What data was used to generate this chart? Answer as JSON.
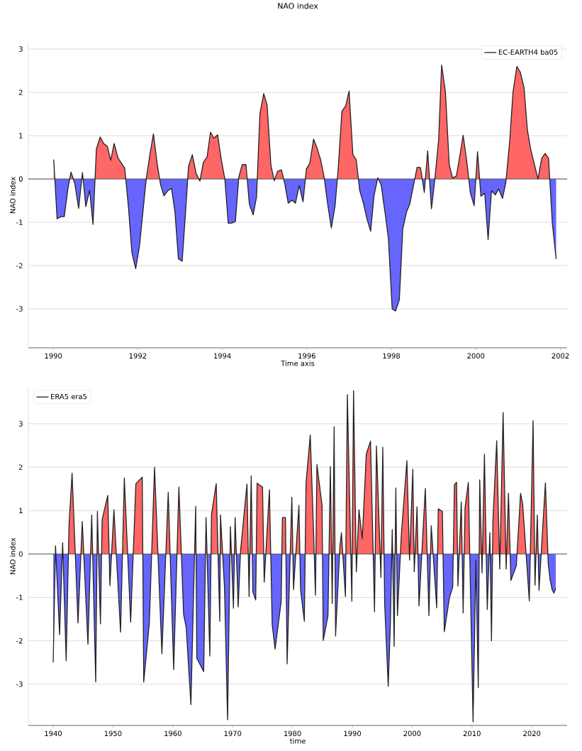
{
  "chart_data": [
    {
      "type": "area",
      "title": "NAO index",
      "xlabel": "Time axis",
      "ylabel": "NAO index",
      "xlim": [
        1989.41,
        2002.16
      ],
      "ylim": [
        -3.9,
        3.15
      ],
      "xticks": [
        1990,
        1992,
        1994,
        1996,
        1998,
        2000,
        2002
      ],
      "yticks": [
        -3,
        -2,
        -1,
        0,
        1,
        2,
        3
      ],
      "grid": "y",
      "legend": "top right",
      "ref_lines": [
        {
          "axis": "y",
          "value": 0,
          "color": "#555555"
        }
      ],
      "x": [
        1990.01,
        1990.09,
        1990.18,
        1990.26,
        1990.35,
        1990.42,
        1990.51,
        1990.6,
        1990.69,
        1990.77,
        1990.86,
        1990.94,
        1991.02,
        1991.11,
        1991.19,
        1991.28,
        1991.36,
        1991.44,
        1991.53,
        1991.61,
        1991.69,
        1991.78,
        1991.86,
        1991.95,
        1992.04,
        1992.12,
        1992.2,
        1992.29,
        1992.37,
        1992.46,
        1992.54,
        1992.62,
        1992.71,
        1992.8,
        1992.88,
        1992.96,
        1993.05,
        1993.13,
        1993.2,
        1993.29,
        1993.38,
        1993.47,
        1993.55,
        1993.64,
        1993.72,
        1993.8,
        1993.89,
        1993.97,
        1994.06,
        1994.14,
        1994.22,
        1994.31,
        1994.39,
        1994.47,
        1994.56,
        1994.64,
        1994.73,
        1994.81,
        1994.89,
        1994.98,
        1995.06,
        1995.15,
        1995.23,
        1995.31,
        1995.4,
        1995.48,
        1995.56,
        1995.65,
        1995.73,
        1995.82,
        1995.91,
        1995.99,
        1996.07,
        1996.16,
        1996.24,
        1996.33,
        1996.41,
        1996.49,
        1996.58,
        1996.67,
        1996.75,
        1996.83,
        1996.92,
        1997.0,
        1997.09,
        1997.17,
        1997.25,
        1997.34,
        1997.42,
        1997.51,
        1997.59,
        1997.68,
        1997.76,
        1997.85,
        1997.93,
        1998.02,
        1998.1,
        1998.19,
        1998.27,
        1998.36,
        1998.44,
        1998.52,
        1998.61,
        1998.69,
        1998.78,
        1998.86,
        1998.95,
        1999.03,
        1999.12,
        1999.19,
        1999.28,
        1999.37,
        1999.45,
        1999.54,
        1999.62,
        1999.7,
        1999.79,
        1999.87,
        1999.96,
        2000.04,
        2000.12,
        2000.21,
        2000.29,
        2000.37,
        2000.46,
        2000.54,
        2000.63,
        2000.71,
        2000.8,
        2000.88,
        2000.97,
        2001.05,
        2001.14,
        2001.22,
        2001.3,
        2001.39,
        2001.47,
        2001.56,
        2001.64,
        2001.72,
        2001.81,
        2001.9
      ],
      "series": [
        {
          "name": "EC-EARTH4 ba05",
          "color": "#222222",
          "colors": [
            "#ff6666",
            "#6666ff",
            "#6666ff",
            "#6666ff",
            "#6666ff",
            "#ff6666",
            "#6666ff",
            "#6666ff",
            "#ff6666",
            "#6666ff",
            "#6666ff",
            "#6666ff",
            "#ff6666",
            "#ff6666",
            "#ff6666",
            "#ff6666",
            "#ff6666",
            "#ff6666",
            "#ff6666",
            "#ff6666",
            "#ff6666",
            "#6666ff",
            "#6666ff",
            "#6666ff",
            "#6666ff",
            "#6666ff",
            "#ff6666",
            "#ff6666",
            "#ff6666",
            "#ff6666",
            "#6666ff",
            "#6666ff",
            "#6666ff",
            "#6666ff",
            "#6666ff",
            "#6666ff",
            "#6666ff",
            "#6666ff",
            "#ff6666",
            "#ff6666",
            "#ff6666",
            "#6666ff",
            "#ff6666",
            "#ff6666",
            "#ff6666",
            "#ff6666",
            "#ff6666",
            "#ff6666",
            "#ff6666",
            "#6666ff",
            "#6666ff",
            "#6666ff",
            "#ff6666",
            "#ff6666",
            "#ff6666",
            "#6666ff",
            "#6666ff",
            "#6666ff",
            "#ff6666",
            "#ff6666",
            "#ff6666",
            "#ff6666",
            "#6666ff",
            "#ff6666",
            "#ff6666",
            "#6666ff",
            "#6666ff",
            "#6666ff",
            "#6666ff",
            "#6666ff",
            "#6666ff",
            "#ff6666",
            "#ff6666",
            "#ff6666",
            "#ff6666",
            "#ff6666",
            "#ff6666",
            "#6666ff",
            "#6666ff",
            "#6666ff",
            "#ff6666",
            "#ff6666",
            "#ff6666",
            "#ff6666",
            "#ff6666",
            "#ff6666",
            "#6666ff",
            "#6666ff",
            "#6666ff",
            "#6666ff",
            "#6666ff",
            "#ff6666",
            "#6666ff",
            "#6666ff",
            "#6666ff",
            "#6666ff",
            "#6666ff",
            "#6666ff",
            "#6666ff",
            "#6666ff",
            "#6666ff",
            "#6666ff",
            "#ff6666",
            "#ff6666",
            "#6666ff",
            "#ff6666",
            "#6666ff",
            "#6666ff",
            "#ff6666",
            "#ff6666",
            "#ff6666",
            "#ff6666",
            "#ff6666",
            "#ff6666",
            "#ff6666",
            "#ff6666",
            "#ff6666",
            "#6666ff",
            "#6666ff",
            "#ff6666",
            "#6666ff",
            "#6666ff",
            "#6666ff",
            "#6666ff",
            "#6666ff",
            "#6666ff",
            "#6666ff",
            "#6666ff",
            "#ff6666",
            "#ff6666",
            "#ff6666",
            "#ff6666",
            "#ff6666",
            "#ff6666",
            "#ff6666",
            "#ff6666",
            "#ff6666",
            "#ff6666",
            "#ff6666",
            "#ff6666",
            "#6666ff",
            "#6666ff"
          ],
          "values": [
            0.45,
            -0.92,
            -0.87,
            -0.87,
            -0.2,
            0.16,
            -0.11,
            -0.68,
            0.15,
            -0.64,
            -0.26,
            -1.05,
            0.69,
            0.97,
            0.82,
            0.75,
            0.43,
            0.82,
            0.49,
            0.37,
            0.25,
            -0.66,
            -1.7,
            -2.07,
            -1.55,
            -0.77,
            0.0,
            0.59,
            1.04,
            0.34,
            -0.14,
            -0.39,
            -0.27,
            -0.22,
            -0.77,
            -1.84,
            -1.9,
            -0.77,
            0.29,
            0.56,
            0.13,
            -0.05,
            0.38,
            0.51,
            1.08,
            0.94,
            1.02,
            0.48,
            0.0,
            -1.02,
            -1.02,
            -0.98,
            0.04,
            0.33,
            0.33,
            -0.58,
            -0.83,
            -0.42,
            1.51,
            1.97,
            1.71,
            0.32,
            -0.04,
            0.18,
            0.21,
            -0.12,
            -0.56,
            -0.49,
            -0.56,
            -0.15,
            -0.53,
            0.23,
            0.36,
            0.92,
            0.72,
            0.43,
            0.04,
            -0.56,
            -1.13,
            -0.61,
            0.34,
            1.56,
            1.69,
            2.03,
            0.56,
            0.44,
            -0.26,
            -0.56,
            -0.91,
            -1.21,
            -0.39,
            0.03,
            -0.14,
            -0.77,
            -1.37,
            -3.0,
            -3.05,
            -2.79,
            -1.16,
            -0.76,
            -0.57,
            -0.17,
            0.27,
            0.26,
            -0.31,
            0.65,
            -0.69,
            -0.01,
            0.92,
            2.63,
            2.01,
            0.33,
            0.02,
            0.07,
            0.53,
            1.01,
            0.37,
            -0.32,
            -0.62,
            0.63,
            -0.4,
            -0.33,
            -1.4,
            -0.27,
            -0.37,
            -0.23,
            -0.45,
            -0.08,
            0.86,
            2.01,
            2.6,
            2.47,
            2.11,
            1.13,
            0.67,
            0.32,
            0.0,
            0.48,
            0.59,
            0.48,
            -1.02,
            -1.85
          ]
        }
      ]
    },
    {
      "type": "area",
      "xlabel": "time",
      "ylabel": "NAO index",
      "xlim": [
        1935.85,
        2025.9
      ],
      "ylim": [
        -3.95,
        3.85
      ],
      "xticks": [
        1940,
        1950,
        1960,
        1970,
        1980,
        1990,
        2000,
        2010,
        2020
      ],
      "yticks": [
        -3,
        -2,
        -1,
        0,
        1,
        2,
        3
      ],
      "grid": "y",
      "legend": "top left",
      "ref_lines": [
        {
          "axis": "y",
          "value": 0,
          "color": "#555555"
        }
      ],
      "x": [
        1940.0,
        1940.39,
        1941.07,
        1941.58,
        1942.17,
        1942.65,
        1943.16,
        1944.15,
        1944.86,
        1945.81,
        1946.44,
        1947.11,
        1947.39,
        1947.9,
        1948.18,
        1949.12,
        1949.48,
        1950.15,
        1951.26,
        1951.89,
        1952.95,
        1953.82,
        1954.89,
        1955.13,
        1956.07,
        1956.94,
        1958.17,
        1959.23,
        1960.14,
        1961.01,
        1961.8,
        1962.24,
        1963.02,
        1963.82,
        1964.01,
        1965.16,
        1965.55,
        1966.18,
        1966.46,
        1967.25,
        1967.84,
        1967.96,
        1968.63,
        1969.15,
        1969.62,
        1970.13,
        1970.41,
        1970.92,
        1971.32,
        1972.39,
        1972.74,
        1973.1,
        1973.37,
        1973.85,
        1974.08,
        1974.99,
        1975.27,
        1976.14,
        1976.61,
        1977.09,
        1978.11,
        1978.31,
        1978.82,
        1979.1,
        1979.89,
        1980.17,
        1981.07,
        1981.35,
        1981.98,
        1982.26,
        1982.97,
        1983.56,
        1983.84,
        1984.08,
        1984.94,
        1985.14,
        1985.93,
        1986.33,
        1986.64,
        1986.96,
        1987.2,
        1987.91,
        1988.18,
        1988.85,
        1989.17,
        1989.92,
        1990.2,
        1990.67,
        1991.11,
        1991.66,
        1992.33,
        1993.04,
        1993.71,
        1994.03,
        1994.3,
        1994.78,
        1995.09,
        1995.41,
        1996.0,
        1996.36,
        1996.67,
        1996.99,
        1997.27,
        1997.54,
        1998.18,
        1999.12,
        1999.56,
        2000.11,
        2000.35,
        2000.82,
        2001.14,
        2002.2,
        2002.8,
        2003.19,
        2004.1,
        2004.37,
        2005.05,
        2005.37,
        2006.23,
        2006.78,
        2007.06,
        2007.42,
        2007.65,
        2008.21,
        2008.52,
        2008.84,
        2009.39,
        2010.18,
        2010.65,
        2011.05,
        2011.29,
        2011.68,
        2012.08,
        2012.55,
        2012.99,
        2013.26,
        2013.5,
        2014.13,
        2014.64,
        2015.2,
        2015.71,
        2016.1,
        2016.5,
        2017.41,
        2018.12,
        2018.47,
        2019.58,
        2020.21,
        2020.53,
        2020.92,
        2021.2,
        2022.27,
        2022.74,
        2023.06,
        2023.41,
        2023.69,
        2024.0
      ],
      "series": [
        {
          "name": "ERA5 era5",
          "color": "#222222",
          "colors": [
            "#6666ff",
            "#ff6666",
            "#6666ff",
            "#ff6666",
            "#6666ff",
            "#ff6666",
            "#ff6666",
            "#6666ff",
            "#ff6666",
            "#6666ff",
            "#ff6666",
            "#6666ff",
            "#ff6666",
            "#6666ff",
            "#ff6666",
            "#ff6666",
            "#6666ff",
            "#ff6666",
            "#6666ff",
            "#ff6666",
            "#6666ff",
            "#ff6666",
            "#ff6666",
            "#6666ff",
            "#6666ff",
            "#ff6666",
            "#6666ff",
            "#ff6666",
            "#6666ff",
            "#ff6666",
            "#6666ff",
            "#6666ff",
            "#6666ff",
            "#ff6666",
            "#6666ff",
            "#6666ff",
            "#ff6666",
            "#6666ff",
            "#ff6666",
            "#ff6666",
            "#6666ff",
            "#ff6666",
            "#6666ff",
            "#6666ff",
            "#ff6666",
            "#6666ff",
            "#ff6666",
            "#6666ff",
            "#ff6666",
            "#ff6666",
            "#6666ff",
            "#ff6666",
            "#6666ff",
            "#6666ff",
            "#ff6666",
            "#ff6666",
            "#6666ff",
            "#ff6666",
            "#6666ff",
            "#6666ff",
            "#6666ff",
            "#ff6666",
            "#ff6666",
            "#6666ff",
            "#ff6666",
            "#6666ff",
            "#ff6666",
            "#6666ff",
            "#6666ff",
            "#ff6666",
            "#ff6666",
            "#ff6666",
            "#6666ff",
            "#ff6666",
            "#ff6666",
            "#6666ff",
            "#6666ff",
            "#ff6666",
            "#6666ff",
            "#ff6666",
            "#6666ff",
            "#ff6666",
            "#ff6666",
            "#6666ff",
            "#ff6666",
            "#6666ff",
            "#ff6666",
            "#6666ff",
            "#ff6666",
            "#ff6666",
            "#ff6666",
            "#ff6666",
            "#6666ff",
            "#ff6666",
            "#ff6666",
            "#6666ff",
            "#ff6666",
            "#6666ff",
            "#6666ff",
            "#6666ff",
            "#ff6666",
            "#6666ff",
            "#ff6666",
            "#6666ff",
            "#ff6666",
            "#ff6666",
            "#6666ff",
            "#ff6666",
            "#6666ff",
            "#ff6666",
            "#6666ff",
            "#ff6666",
            "#6666ff",
            "#ff6666",
            "#6666ff",
            "#ff6666",
            "#ff6666",
            "#6666ff",
            "#6666ff",
            "#6666ff",
            "#ff6666",
            "#ff6666",
            "#6666ff",
            "#ff6666",
            "#6666ff",
            "#ff6666",
            "#ff6666",
            "#6666ff",
            "#6666ff",
            "#6666ff",
            "#ff6666",
            "#6666ff",
            "#ff6666",
            "#6666ff",
            "#ff6666",
            "#6666ff",
            "#ff6666",
            "#ff6666",
            "#6666ff",
            "#ff6666",
            "#6666ff",
            "#ff6666",
            "#6666ff",
            "#6666ff",
            "#ff6666",
            "#ff6666",
            "#6666ff",
            "#ff6666",
            "#6666ff",
            "#ff6666",
            "#6666ff",
            "#ff6666",
            "#6666ff",
            "#6666ff",
            "#6666ff",
            "#6666ff",
            "#6666ff"
          ],
          "values": [
            -2.5,
            0.19,
            -1.86,
            0.26,
            -2.46,
            0.68,
            1.86,
            -1.59,
            0.75,
            -2.08,
            0.9,
            -2.95,
            0.98,
            -1.61,
            0.79,
            1.35,
            -0.73,
            1.02,
            -1.8,
            1.75,
            -1.57,
            1.62,
            1.77,
            -2.95,
            -1.59,
            2.0,
            -2.3,
            1.42,
            -2.66,
            1.54,
            -1.39,
            -1.7,
            -3.47,
            1.1,
            -2.4,
            -2.71,
            0.84,
            -2.35,
            0.91,
            1.62,
            -1.55,
            0.9,
            -0.76,
            -3.82,
            0.63,
            -1.25,
            0.84,
            -1.22,
            0.08,
            1.61,
            -0.98,
            1.8,
            -0.87,
            -1.06,
            1.63,
            1.54,
            -0.65,
            1.48,
            -1.63,
            -2.19,
            -1.09,
            0.84,
            0.84,
            -2.53,
            1.31,
            -0.82,
            1.12,
            -0.82,
            -1.55,
            1.63,
            2.74,
            0.35,
            -0.95,
            2.06,
            1.12,
            -1.99,
            -1.42,
            2.01,
            -1.14,
            2.93,
            -1.89,
            0.16,
            0.49,
            -0.98,
            3.67,
            -1.09,
            3.76,
            -0.41,
            1.02,
            0.35,
            2.3,
            2.6,
            -1.33,
            2.49,
            1.42,
            -0.54,
            2.46,
            -1.17,
            -3.05,
            -1.61,
            0.56,
            -2.13,
            1.52,
            -1.42,
            0.42,
            2.15,
            -0.14,
            1.95,
            -0.41,
            1.09,
            -1.2,
            1.51,
            -1.42,
            0.65,
            -1.24,
            1.04,
            0.98,
            -1.79,
            -1.01,
            -0.76,
            1.59,
            1.65,
            -0.74,
            1.2,
            -1.36,
            1.06,
            1.65,
            -3.87,
            -0.14,
            -3.08,
            1.71,
            -0.44,
            2.3,
            -1.28,
            0.49,
            -2.0,
            0.77,
            2.61,
            -0.35,
            3.26,
            -0.35,
            1.4,
            -0.61,
            -0.27,
            1.4,
            1.15,
            -1.08,
            3.07,
            -0.72,
            0.9,
            -0.84,
            1.64,
            -0.22,
            -0.6,
            -0.83,
            -0.9,
            -0.79
          ]
        }
      ]
    }
  ]
}
